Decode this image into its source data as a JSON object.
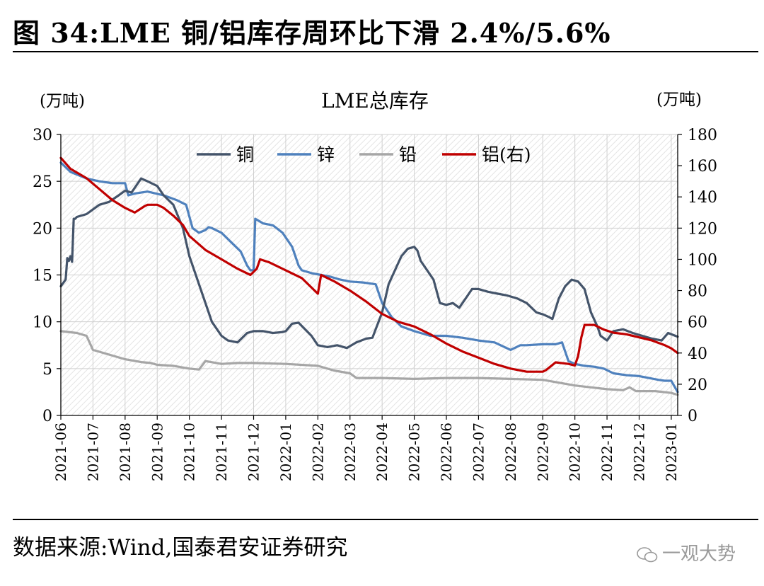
{
  "figure": {
    "title": "图 34:LME 铜/铝库存周环比下滑 2.4%/5.6%",
    "source": "数据来源:Wind,国泰君安证券研究",
    "watermark": "一观大势"
  },
  "colors": {
    "copper": "#44546a",
    "zinc": "#4f81bd",
    "lead": "#a6a6a6",
    "aluminum": "#c00000"
  },
  "chart_data": {
    "type": "line",
    "title": "LME总库存",
    "ylabel_left": "(万吨)",
    "ylabel_right": "(万吨)",
    "ylim_left": [
      0,
      30
    ],
    "ylim_right": [
      0,
      180
    ],
    "yticks_left": [
      "0",
      "5",
      "10",
      "15",
      "20",
      "25",
      "30"
    ],
    "yticks_right": [
      "0",
      "20",
      "40",
      "60",
      "80",
      "100",
      "120",
      "140",
      "160",
      "180"
    ],
    "xticks": [
      "2021-06",
      "2021-07",
      "2021-08",
      "2021-09",
      "2021-10",
      "2021-11",
      "2021-12",
      "2022-01",
      "2022-02",
      "2022-03",
      "2022-04",
      "2022-05",
      "2022-06",
      "2022-07",
      "2022-08",
      "2022-09",
      "2022-10",
      "2022-11",
      "2022-12",
      "2023-01"
    ],
    "x_unit": "months since 2021-06",
    "x_range": [
      0,
      19.2
    ],
    "grid": true,
    "legend_position": "top",
    "series": [
      {
        "name": "铜",
        "axis": "left",
        "color_key": "copper",
        "x": [
          0,
          0.15,
          0.2,
          0.25,
          0.3,
          0.35,
          0.4,
          0.45,
          0.5,
          0.8,
          1.0,
          1.2,
          1.5,
          1.8,
          2.0,
          2.2,
          2.5,
          2.7,
          3.0,
          3.2,
          3.5,
          3.8,
          4.0,
          4.2,
          4.5,
          4.7,
          5.0,
          5.2,
          5.5,
          5.8,
          6.0,
          6.3,
          6.6,
          6.9,
          7.0,
          7.2,
          7.4,
          7.6,
          7.8,
          8.0,
          8.3,
          8.6,
          8.9,
          9.2,
          9.5,
          9.7,
          10.0,
          10.2,
          10.4,
          10.6,
          10.8,
          11.0,
          11.1,
          11.2,
          11.4,
          11.6,
          11.8,
          12.0,
          12.2,
          12.4,
          12.6,
          12.8,
          13.0,
          13.3,
          13.6,
          13.9,
          14.2,
          14.5,
          14.8,
          15.0,
          15.2,
          15.3,
          15.5,
          15.7,
          15.9,
          16.1,
          16.3,
          16.5,
          16.7,
          16.8,
          17.0,
          17.2,
          17.5,
          17.8,
          18.1,
          18.4,
          18.7,
          18.9,
          19.2
        ],
        "y": [
          13.8,
          14.5,
          16.8,
          16.5,
          17.0,
          16.4,
          21.0,
          21.0,
          21.2,
          21.5,
          22.0,
          22.5,
          22.8,
          23.5,
          24.0,
          23.8,
          25.3,
          25.0,
          24.5,
          23.5,
          22.5,
          20.0,
          17.0,
          15.0,
          12.0,
          10.0,
          8.5,
          8.0,
          7.8,
          8.8,
          9.0,
          9.0,
          8.8,
          8.9,
          9.0,
          9.8,
          9.9,
          9.2,
          8.5,
          7.5,
          7.3,
          7.5,
          7.2,
          7.8,
          8.2,
          8.3,
          11.0,
          14.0,
          15.5,
          17.0,
          17.8,
          18.0,
          17.6,
          16.5,
          15.5,
          14.5,
          12.0,
          11.8,
          12.0,
          11.5,
          12.5,
          13.5,
          13.5,
          13.2,
          13.0,
          12.8,
          12.5,
          12.0,
          11.0,
          10.8,
          10.5,
          10.3,
          12.5,
          13.8,
          14.5,
          14.3,
          13.5,
          11.0,
          9.5,
          8.5,
          8.0,
          9.0,
          9.2,
          8.8,
          8.5,
          8.2,
          8.0,
          8.8,
          8.4
        ]
      },
      {
        "name": "锌",
        "axis": "left",
        "color_key": "zinc",
        "x": [
          0,
          0.3,
          0.8,
          1.2,
          1.6,
          2.0,
          2.1,
          2.3,
          2.7,
          3.2,
          3.6,
          3.9,
          4.1,
          4.3,
          4.5,
          4.6,
          4.7,
          5.0,
          5.3,
          5.6,
          5.8,
          5.9,
          6.0,
          6.05,
          6.3,
          6.6,
          6.9,
          7.2,
          7.4,
          7.5,
          7.8,
          8.1,
          8.4,
          8.7,
          9.0,
          9.4,
          9.8,
          10.0,
          10.3,
          10.6,
          11.0,
          11.5,
          12.0,
          12.5,
          13.0,
          13.5,
          14.0,
          14.3,
          14.5,
          15.0,
          15.4,
          15.6,
          15.8,
          16.0,
          16.3,
          16.6,
          16.9,
          17.2,
          17.6,
          18.0,
          18.3,
          18.6,
          18.8,
          19.0,
          19.2
        ],
        "y": [
          27.0,
          26.0,
          25.3,
          25.0,
          24.8,
          24.8,
          23.5,
          23.7,
          23.9,
          23.5,
          23.0,
          22.5,
          20.0,
          19.5,
          19.8,
          20.1,
          20.0,
          19.5,
          18.5,
          17.5,
          16.0,
          15.5,
          15.5,
          21.0,
          20.5,
          20.3,
          19.5,
          18.0,
          16.0,
          15.5,
          15.2,
          15.0,
          14.8,
          14.5,
          14.3,
          14.2,
          14.0,
          12.0,
          10.5,
          9.5,
          9.0,
          8.5,
          8.5,
          8.3,
          8.0,
          7.8,
          7.0,
          7.5,
          7.5,
          7.6,
          7.6,
          7.8,
          5.8,
          5.5,
          5.3,
          5.2,
          5.0,
          4.5,
          4.3,
          4.2,
          4.0,
          3.8,
          3.7,
          3.7,
          2.5
        ]
      },
      {
        "name": "铅",
        "axis": "left",
        "color_key": "lead",
        "x": [
          0,
          0.5,
          0.8,
          1.0,
          1.5,
          2.0,
          2.5,
          2.8,
          3.0,
          3.5,
          4.0,
          4.3,
          4.5,
          5.0,
          5.5,
          6.0,
          7.0,
          8.0,
          8.5,
          9.0,
          9.2,
          10.0,
          11.0,
          12.0,
          13.0,
          14.0,
          15.0,
          16.0,
          16.5,
          17.0,
          17.5,
          17.7,
          17.9,
          18.0,
          18.5,
          19.0,
          19.2
        ],
        "y": [
          9.0,
          8.8,
          8.5,
          7.0,
          6.5,
          6.0,
          5.7,
          5.6,
          5.4,
          5.3,
          5.0,
          4.9,
          5.8,
          5.5,
          5.6,
          5.6,
          5.5,
          5.3,
          4.8,
          4.5,
          4.0,
          4.0,
          3.9,
          4.0,
          4.0,
          3.9,
          3.8,
          3.2,
          3.0,
          2.8,
          2.7,
          3.0,
          2.6,
          2.6,
          2.6,
          2.4,
          2.2
        ]
      },
      {
        "name": "铝(右)",
        "axis": "right",
        "color_key": "aluminum",
        "x": [
          0,
          0.3,
          0.8,
          1.2,
          1.6,
          2.0,
          2.3,
          2.6,
          2.7,
          3.0,
          3.2,
          3.5,
          3.8,
          4.0,
          4.5,
          5.0,
          5.5,
          5.9,
          6.0,
          6.1,
          6.2,
          6.5,
          7.0,
          7.5,
          8.0,
          8.1,
          8.5,
          9.0,
          9.5,
          10.0,
          10.5,
          11.0,
          11.5,
          12.0,
          12.5,
          13.0,
          13.5,
          14.0,
          14.5,
          15.0,
          15.1,
          15.4,
          15.8,
          16.0,
          16.1,
          16.2,
          16.3,
          16.6,
          16.9,
          17.2,
          17.6,
          18.0,
          18.4,
          18.8,
          19.0,
          19.2
        ],
        "y": [
          165,
          158,
          152,
          145,
          138,
          133,
          130,
          134,
          135,
          135,
          133,
          128,
          122,
          115,
          106,
          100,
          94,
          90,
          92,
          94,
          100,
          98,
          93,
          88,
          78,
          90,
          86,
          80,
          73,
          65,
          60,
          57,
          52,
          46,
          41,
          37,
          33,
          30,
          28,
          28,
          29,
          34,
          33,
          32,
          38,
          50,
          58,
          58,
          55,
          53,
          52,
          50,
          48,
          45,
          43,
          40
        ]
      }
    ]
  }
}
